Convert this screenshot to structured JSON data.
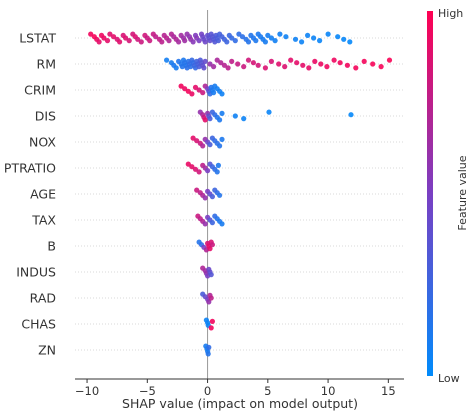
{
  "chart_data": {
    "type": "scatter",
    "subtype": "shap-beeswarm-summary",
    "xlabel": "SHAP value (impact on model output)",
    "xlim": [
      -11,
      16.3
    ],
    "x_ticks": [
      -10,
      -5,
      0,
      5,
      10,
      15
    ],
    "x_tick_labels": [
      "−10",
      "−5",
      "0",
      "5",
      "10",
      "15"
    ],
    "zero_line": 0,
    "colorbar": {
      "label": "Feature value",
      "high_label": "High",
      "low_label": "Low",
      "low_color": "#008bfb",
      "high_color": "#ff0052"
    },
    "features": [
      {
        "name": "LSTAT",
        "points": [
          [
            -9.7,
            0.95
          ],
          [
            -9.4,
            0.97
          ],
          [
            -9.2,
            0.93
          ],
          [
            -9.0,
            0.9
          ],
          [
            -8.8,
            0.94
          ],
          [
            -8.6,
            0.92
          ],
          [
            -8.3,
            0.9
          ],
          [
            -8.1,
            0.88
          ],
          [
            -7.8,
            0.9
          ],
          [
            -7.5,
            0.86
          ],
          [
            -7.3,
            0.88
          ],
          [
            -7.0,
            0.85
          ],
          [
            -6.8,
            0.87
          ],
          [
            -6.5,
            0.84
          ],
          [
            -6.2,
            0.83
          ],
          [
            -6.0,
            0.86
          ],
          [
            -5.8,
            0.82
          ],
          [
            -5.5,
            0.8
          ],
          [
            -5.2,
            0.82
          ],
          [
            -5.0,
            0.79
          ],
          [
            -4.8,
            0.8
          ],
          [
            -4.5,
            0.78
          ],
          [
            -4.3,
            0.75
          ],
          [
            -4.0,
            0.77
          ],
          [
            -3.8,
            0.74
          ],
          [
            -3.6,
            0.72
          ],
          [
            -3.4,
            0.73
          ],
          [
            -3.2,
            0.7
          ],
          [
            -3.0,
            0.71
          ],
          [
            -2.8,
            0.68
          ],
          [
            -2.6,
            0.7
          ],
          [
            -2.4,
            0.66
          ],
          [
            -2.2,
            0.65
          ],
          [
            -2.0,
            0.62
          ],
          [
            -1.9,
            0.64
          ],
          [
            -1.7,
            0.6
          ],
          [
            -1.5,
            0.58
          ],
          [
            -1.4,
            0.6
          ],
          [
            -1.2,
            0.55
          ],
          [
            -1.0,
            0.52
          ],
          [
            -0.9,
            0.55
          ],
          [
            -0.7,
            0.5
          ],
          [
            -0.5,
            0.48
          ],
          [
            -0.4,
            0.45
          ],
          [
            -0.3,
            0.42
          ],
          [
            -0.2,
            0.45
          ],
          [
            0.0,
            0.4
          ],
          [
            0.1,
            0.38
          ],
          [
            0.2,
            0.4
          ],
          [
            0.3,
            0.36
          ],
          [
            0.4,
            0.35
          ],
          [
            0.5,
            0.33
          ],
          [
            0.6,
            0.34
          ],
          [
            0.7,
            0.32
          ],
          [
            0.8,
            0.3
          ],
          [
            0.9,
            0.3
          ],
          [
            1.0,
            0.28
          ],
          [
            1.2,
            0.28
          ],
          [
            1.4,
            0.26
          ],
          [
            1.6,
            0.25
          ],
          [
            1.8,
            0.24
          ],
          [
            2.0,
            0.22
          ],
          [
            2.3,
            0.2
          ],
          [
            2.6,
            0.19
          ],
          [
            2.9,
            0.18
          ],
          [
            3.2,
            0.16
          ],
          [
            3.4,
            0.15
          ],
          [
            3.6,
            0.14
          ],
          [
            3.8,
            0.13
          ],
          [
            4.0,
            0.12
          ],
          [
            4.2,
            0.12
          ],
          [
            4.4,
            0.11
          ],
          [
            4.6,
            0.1
          ],
          [
            4.8,
            0.1
          ],
          [
            5.0,
            0.09
          ],
          [
            5.3,
            0.08
          ],
          [
            5.6,
            0.07
          ],
          [
            6.0,
            0.07
          ],
          [
            6.5,
            0.06
          ],
          [
            7.3,
            0.06
          ],
          [
            7.8,
            0.05
          ],
          [
            8.3,
            0.05
          ],
          [
            8.8,
            0.05
          ],
          [
            9.3,
            0.04
          ],
          [
            10.0,
            0.04
          ],
          [
            10.8,
            0.03
          ],
          [
            11.3,
            0.03
          ],
          [
            11.8,
            0.02
          ]
        ]
      },
      {
        "name": "RM",
        "points": [
          [
            -3.4,
            0.08
          ],
          [
            -3.0,
            0.1
          ],
          [
            -2.8,
            0.12
          ],
          [
            -2.6,
            0.1
          ],
          [
            -2.4,
            0.14
          ],
          [
            -2.2,
            0.13
          ],
          [
            -2.1,
            0.15
          ],
          [
            -2.0,
            0.12
          ],
          [
            -1.9,
            0.16
          ],
          [
            -1.8,
            0.14
          ],
          [
            -1.7,
            0.18
          ],
          [
            -1.6,
            0.16
          ],
          [
            -1.5,
            0.2
          ],
          [
            -1.4,
            0.18
          ],
          [
            -1.3,
            0.22
          ],
          [
            -1.2,
            0.2
          ],
          [
            -1.1,
            0.24
          ],
          [
            -1.0,
            0.22
          ],
          [
            -0.9,
            0.26
          ],
          [
            -0.8,
            0.28
          ],
          [
            -0.7,
            0.3
          ],
          [
            -0.6,
            0.32
          ],
          [
            -0.5,
            0.35
          ],
          [
            -0.4,
            0.38
          ],
          [
            -0.3,
            0.4
          ],
          [
            -0.2,
            0.42
          ],
          [
            0.2,
            0.6
          ],
          [
            0.5,
            0.65
          ],
          [
            0.8,
            0.68
          ],
          [
            1.1,
            0.7
          ],
          [
            1.4,
            0.72
          ],
          [
            1.7,
            0.74
          ],
          [
            2.0,
            0.76
          ],
          [
            2.5,
            0.78
          ],
          [
            3.0,
            0.8
          ],
          [
            3.4,
            0.82
          ],
          [
            3.8,
            0.84
          ],
          [
            4.2,
            0.83
          ],
          [
            4.8,
            0.86
          ],
          [
            5.3,
            0.85
          ],
          [
            5.9,
            0.88
          ],
          [
            6.4,
            0.87
          ],
          [
            6.9,
            0.89
          ],
          [
            7.4,
            0.9
          ],
          [
            7.9,
            0.9
          ],
          [
            8.4,
            0.91
          ],
          [
            8.9,
            0.92
          ],
          [
            9.4,
            0.93
          ],
          [
            9.9,
            0.94
          ],
          [
            10.5,
            0.94
          ],
          [
            11.0,
            0.95
          ],
          [
            11.6,
            0.95
          ],
          [
            12.3,
            0.96
          ],
          [
            13.0,
            0.96
          ],
          [
            13.7,
            0.97
          ],
          [
            14.4,
            0.97
          ],
          [
            15.1,
            0.98
          ]
        ]
      },
      {
        "name": "CRIM",
        "points": [
          [
            -2.2,
            0.95
          ],
          [
            -1.9,
            0.93
          ],
          [
            -1.6,
            0.96
          ],
          [
            -1.3,
            0.92
          ],
          [
            -1.0,
            0.9
          ],
          [
            -0.7,
            0.85
          ],
          [
            -0.4,
            0.8
          ],
          [
            -0.2,
            0.7
          ],
          [
            0.0,
            0.5
          ],
          [
            0.1,
            0.35
          ],
          [
            0.2,
            0.2
          ],
          [
            0.3,
            0.15
          ],
          [
            0.4,
            0.12
          ],
          [
            0.5,
            0.1
          ],
          [
            0.6,
            0.1
          ],
          [
            0.8,
            0.08
          ],
          [
            1.0,
            0.08
          ],
          [
            1.2,
            0.06
          ]
        ]
      },
      {
        "name": "DIS",
        "points": [
          [
            -0.6,
            0.6
          ],
          [
            -0.4,
            0.7
          ],
          [
            -0.3,
            0.8
          ],
          [
            -0.2,
            0.9
          ],
          [
            0.0,
            0.6
          ],
          [
            0.1,
            0.4
          ],
          [
            0.2,
            0.3
          ],
          [
            0.4,
            0.25
          ],
          [
            0.6,
            0.2
          ],
          [
            0.8,
            0.15
          ],
          [
            1.0,
            0.12
          ],
          [
            1.2,
            0.1
          ],
          [
            2.3,
            0.06
          ],
          [
            3.0,
            0.05
          ],
          [
            5.1,
            0.04
          ],
          [
            11.9,
            0.02
          ]
        ]
      },
      {
        "name": "NOX",
        "points": [
          [
            -1.2,
            0.9
          ],
          [
            -0.9,
            0.85
          ],
          [
            -0.6,
            0.8
          ],
          [
            -0.4,
            0.7
          ],
          [
            -0.2,
            0.6
          ],
          [
            0.0,
            0.45
          ],
          [
            0.2,
            0.3
          ],
          [
            0.4,
            0.25
          ],
          [
            0.6,
            0.2
          ],
          [
            0.8,
            0.18
          ],
          [
            1.0,
            0.15
          ],
          [
            1.2,
            0.12
          ]
        ]
      },
      {
        "name": "PTRATIO",
        "points": [
          [
            -1.6,
            0.92
          ],
          [
            -1.3,
            0.9
          ],
          [
            -1.0,
            0.86
          ],
          [
            -0.7,
            0.82
          ],
          [
            -0.4,
            0.75
          ],
          [
            -0.2,
            0.65
          ],
          [
            0.0,
            0.5
          ],
          [
            0.2,
            0.35
          ],
          [
            0.4,
            0.25
          ],
          [
            0.6,
            0.2
          ],
          [
            0.8,
            0.15
          ],
          [
            0.9,
            0.12
          ]
        ]
      },
      {
        "name": "AGE",
        "points": [
          [
            -0.9,
            0.8
          ],
          [
            -0.6,
            0.75
          ],
          [
            -0.4,
            0.7
          ],
          [
            -0.2,
            0.6
          ],
          [
            0.0,
            0.5
          ],
          [
            0.2,
            0.4
          ],
          [
            0.4,
            0.3
          ],
          [
            0.6,
            0.25
          ],
          [
            0.8,
            0.2
          ],
          [
            1.0,
            0.15
          ]
        ]
      },
      {
        "name": "TAX",
        "points": [
          [
            -0.8,
            0.8
          ],
          [
            -0.6,
            0.75
          ],
          [
            -0.4,
            0.7
          ],
          [
            -0.2,
            0.6
          ],
          [
            0.0,
            0.5
          ],
          [
            0.2,
            0.35
          ],
          [
            0.4,
            0.25
          ],
          [
            0.6,
            0.2
          ],
          [
            0.8,
            0.15
          ],
          [
            1.0,
            0.12
          ],
          [
            1.2,
            0.1
          ]
        ]
      },
      {
        "name": "B",
        "points": [
          [
            -0.7,
            0.15
          ],
          [
            -0.5,
            0.2
          ],
          [
            -0.3,
            0.5
          ],
          [
            -0.1,
            0.7
          ],
          [
            0.0,
            0.85
          ],
          [
            0.1,
            0.9
          ],
          [
            0.2,
            0.9
          ],
          [
            0.3,
            0.85
          ],
          [
            0.4,
            0.8
          ]
        ]
      },
      {
        "name": "INDUS",
        "points": [
          [
            -0.4,
            0.7
          ],
          [
            -0.2,
            0.65
          ],
          [
            -0.1,
            0.6
          ],
          [
            0.0,
            0.5
          ],
          [
            0.1,
            0.45
          ],
          [
            0.2,
            0.4
          ],
          [
            0.3,
            0.35
          ]
        ]
      },
      {
        "name": "RAD",
        "points": [
          [
            -0.4,
            0.3
          ],
          [
            -0.2,
            0.4
          ],
          [
            0.0,
            0.5
          ],
          [
            0.1,
            0.6
          ],
          [
            0.2,
            0.7
          ],
          [
            0.3,
            0.75
          ]
        ]
      },
      {
        "name": "CHAS",
        "points": [
          [
            -0.1,
            0.05
          ],
          [
            0.0,
            0.05
          ],
          [
            0.05,
            0.05
          ],
          [
            0.3,
            0.95
          ],
          [
            0.4,
            0.95
          ]
        ]
      },
      {
        "name": "ZN",
        "points": [
          [
            -0.15,
            0.1
          ],
          [
            -0.05,
            0.1
          ],
          [
            0.0,
            0.1
          ],
          [
            0.05,
            0.15
          ],
          [
            0.1,
            0.2
          ]
        ]
      }
    ]
  }
}
